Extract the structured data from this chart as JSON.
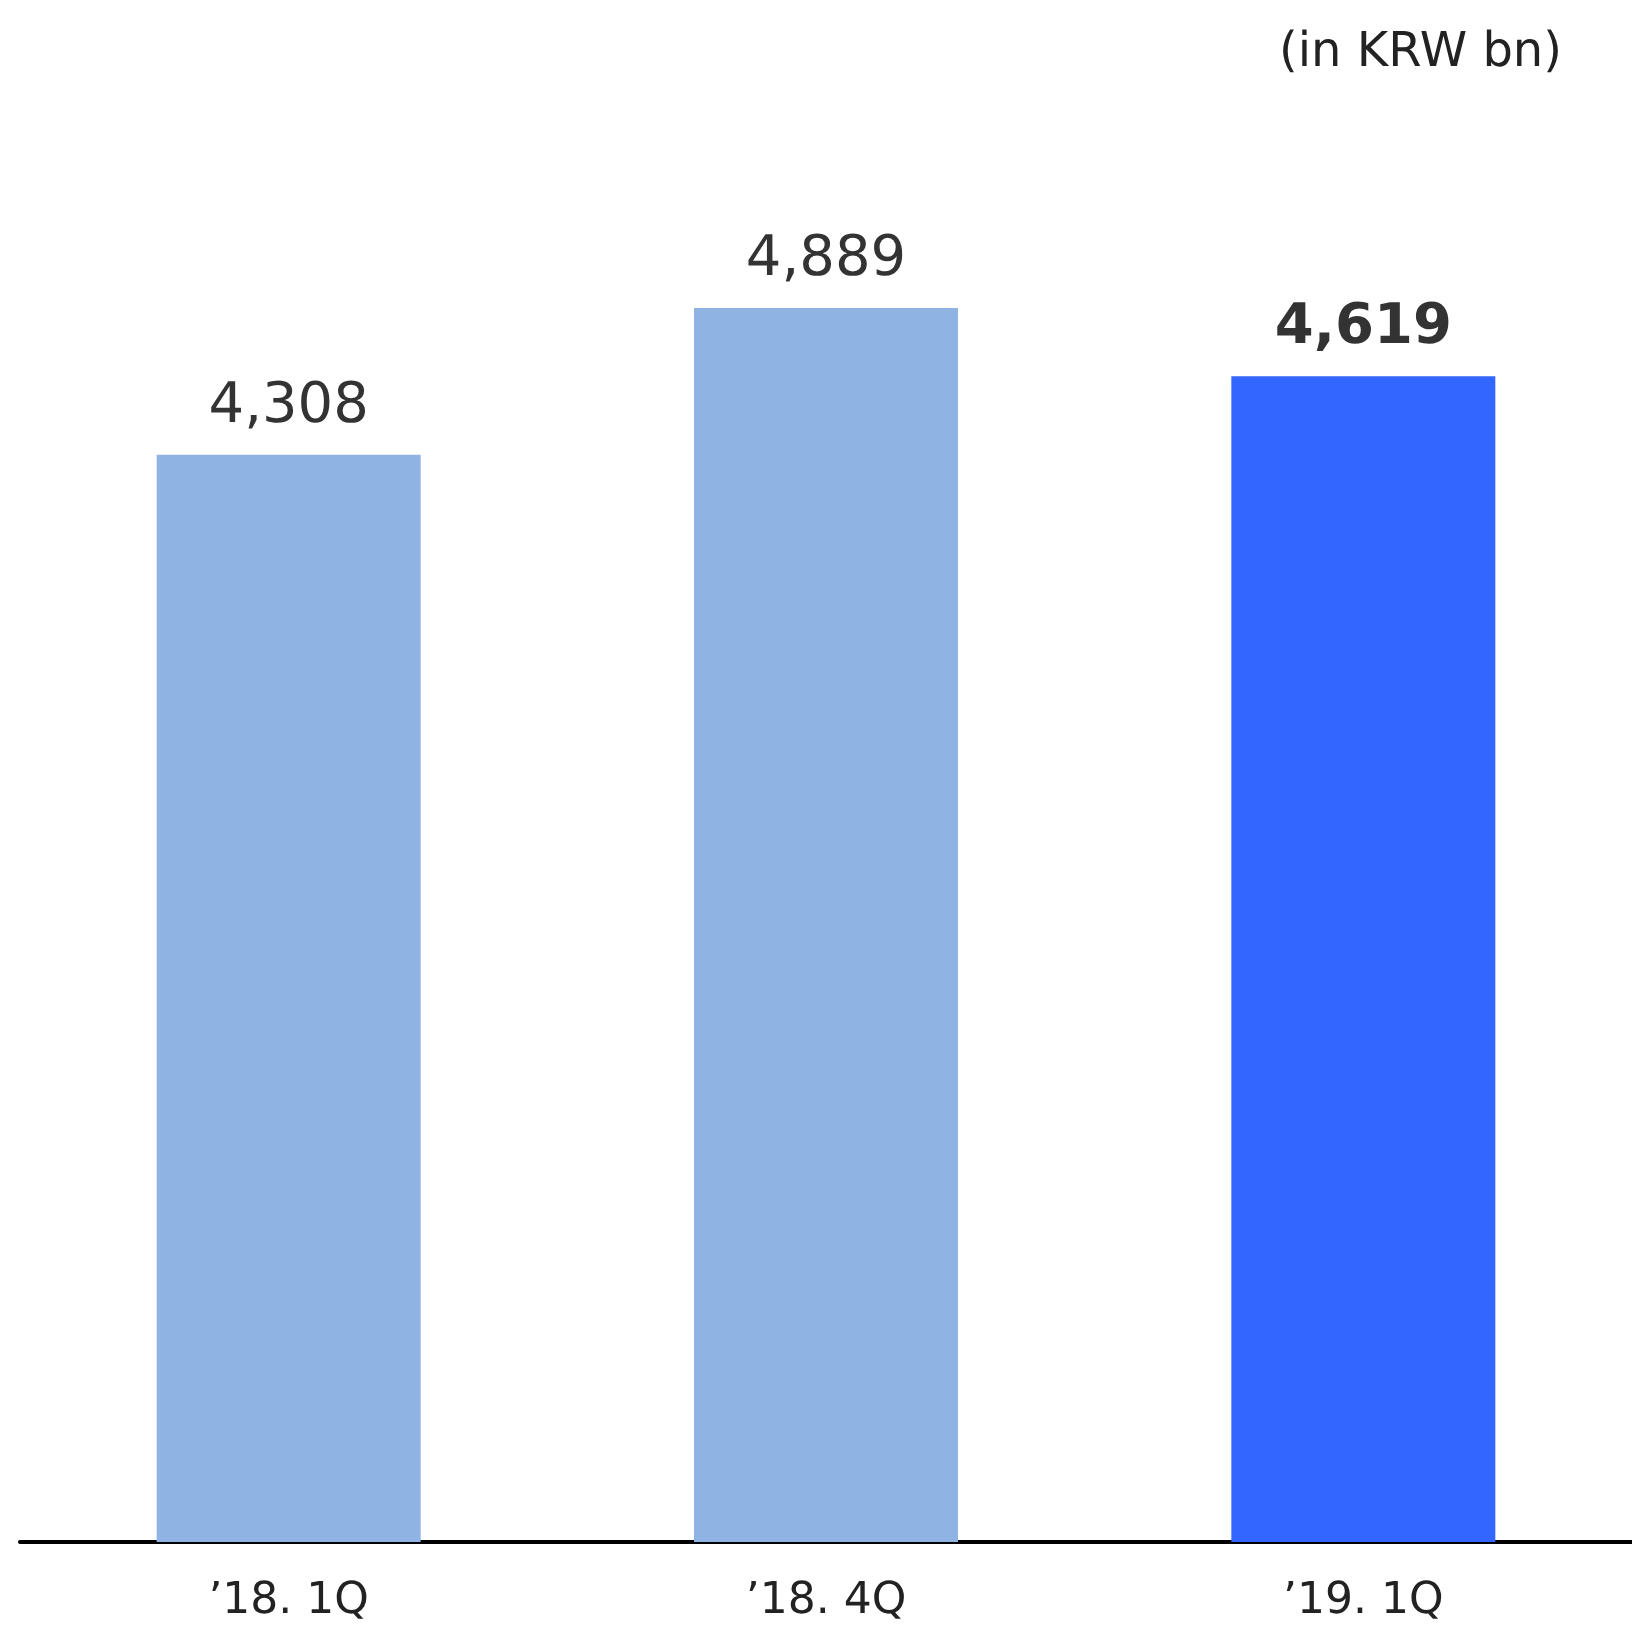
{
  "chart_data": {
    "type": "bar",
    "ylabel": "(in KRW bn)",
    "categories": [
      "’18. 1Q",
      "’18. 4Q",
      "’19. 1Q"
    ],
    "values": [
      4308,
      4889,
      4619
    ],
    "value_labels": [
      "4,308",
      "4,889",
      "4,619"
    ],
    "colors": [
      "#8fb4e3",
      "#8fb4e3",
      "#3366ff"
    ]
  }
}
